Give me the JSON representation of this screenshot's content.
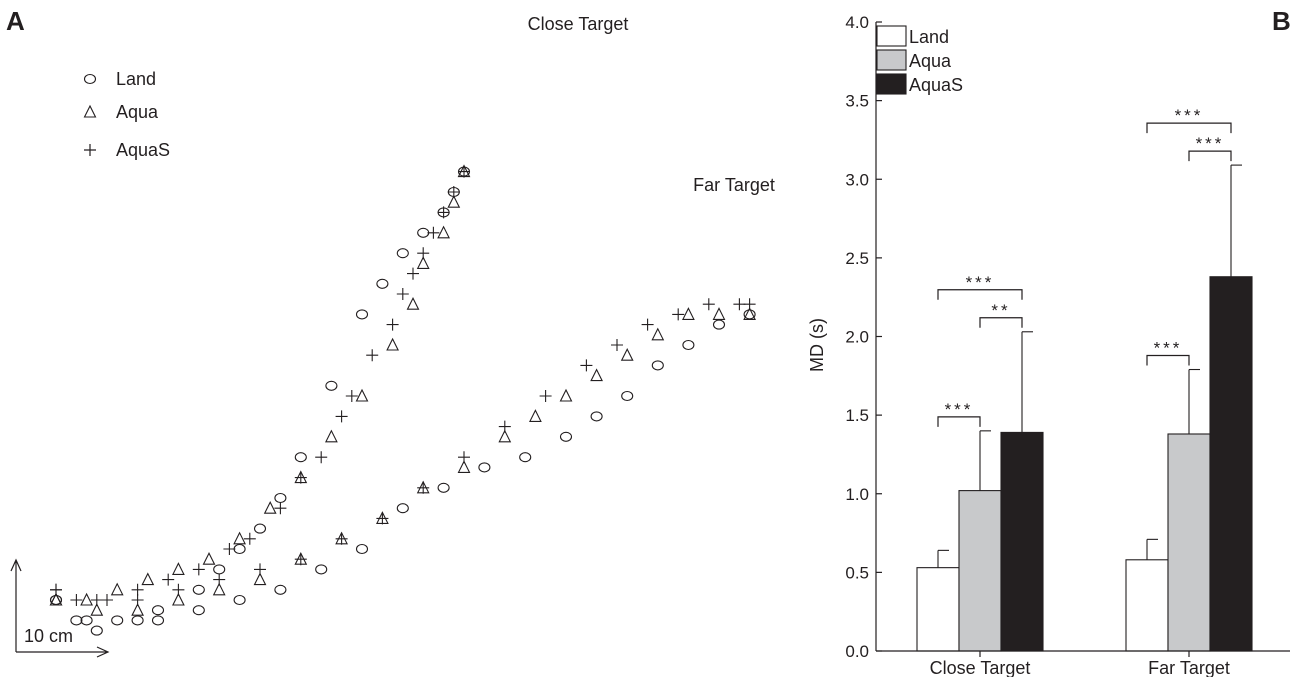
{
  "panels": {
    "a_label": "A",
    "b_label": "B"
  },
  "chart_data": [
    {
      "type": "scatter",
      "panel": "A",
      "target_labels": {
        "close": "Close Target",
        "far": "Far Target"
      },
      "scale_bar": {
        "label": "10 cm",
        "length_cm": 10
      },
      "legend": [
        {
          "name": "Land",
          "marker": "circle"
        },
        {
          "name": "Aqua",
          "marker": "triangle"
        },
        {
          "name": "AquaS",
          "marker": "plus"
        }
      ],
      "series": [
        {
          "name": "Land",
          "target": "Close Target",
          "marker": "circle",
          "points": [
            [
              0,
              0
            ],
            [
              2,
              -2
            ],
            [
              4,
              -3
            ],
            [
              8,
              -2
            ],
            [
              10,
              -1
            ],
            [
              14,
              1
            ],
            [
              16,
              3
            ],
            [
              18,
              5
            ],
            [
              20,
              7
            ],
            [
              22,
              10
            ],
            [
              24,
              14
            ],
            [
              27,
              21
            ],
            [
              30,
              28
            ],
            [
              32,
              31
            ],
            [
              34,
              34
            ],
            [
              36,
              36
            ],
            [
              38,
              38
            ],
            [
              39,
              40
            ],
            [
              40,
              42
            ]
          ]
        },
        {
          "name": "Aqua",
          "target": "Close Target",
          "marker": "triangle",
          "points": [
            [
              0,
              0
            ],
            [
              3,
              0
            ],
            [
              6,
              1
            ],
            [
              9,
              2
            ],
            [
              12,
              3
            ],
            [
              15,
              4
            ],
            [
              18,
              6
            ],
            [
              21,
              9
            ],
            [
              24,
              12
            ],
            [
              27,
              16
            ],
            [
              30,
              20
            ],
            [
              33,
              25
            ],
            [
              35,
              29
            ],
            [
              36,
              33
            ],
            [
              38,
              36
            ],
            [
              39,
              39
            ],
            [
              40,
              42
            ]
          ]
        },
        {
          "name": "AquaS",
          "target": "Close Target",
          "marker": "plus",
          "points": [
            [
              0,
              1
            ],
            [
              2,
              0
            ],
            [
              5,
              0
            ],
            [
              8,
              1
            ],
            [
              11,
              2
            ],
            [
              14,
              3
            ],
            [
              17,
              5
            ],
            [
              19,
              6
            ],
            [
              22,
              9
            ],
            [
              24,
              12
            ],
            [
              26,
              14
            ],
            [
              28,
              18
            ],
            [
              29,
              20
            ],
            [
              31,
              24
            ],
            [
              33,
              27
            ],
            [
              34,
              30
            ],
            [
              35,
              32
            ],
            [
              36,
              34
            ],
            [
              37,
              36
            ],
            [
              38,
              38
            ],
            [
              39,
              40
            ],
            [
              40,
              42
            ]
          ]
        },
        {
          "name": "Land",
          "target": "Far Target",
          "marker": "circle",
          "points": [
            [
              0,
              0
            ],
            [
              3,
              -2
            ],
            [
              6,
              -2
            ],
            [
              10,
              -2
            ],
            [
              14,
              -1
            ],
            [
              18,
              0
            ],
            [
              22,
              1
            ],
            [
              26,
              3
            ],
            [
              30,
              5
            ],
            [
              34,
              9
            ],
            [
              38,
              11
            ],
            [
              42,
              13
            ],
            [
              46,
              14
            ],
            [
              50,
              16
            ],
            [
              53,
              18
            ],
            [
              56,
              20
            ],
            [
              59,
              23
            ],
            [
              62,
              25
            ],
            [
              65,
              27
            ],
            [
              68,
              28
            ]
          ]
        },
        {
          "name": "Aqua",
          "target": "Far Target",
          "marker": "triangle",
          "points": [
            [
              0,
              0
            ],
            [
              4,
              -1
            ],
            [
              8,
              -1
            ],
            [
              12,
              0
            ],
            [
              16,
              1
            ],
            [
              20,
              2
            ],
            [
              24,
              4
            ],
            [
              28,
              6
            ],
            [
              32,
              8
            ],
            [
              36,
              11
            ],
            [
              40,
              13
            ],
            [
              44,
              16
            ],
            [
              47,
              18
            ],
            [
              50,
              20
            ],
            [
              53,
              22
            ],
            [
              56,
              24
            ],
            [
              59,
              26
            ],
            [
              62,
              28
            ],
            [
              65,
              28
            ],
            [
              68,
              28
            ]
          ]
        },
        {
          "name": "AquaS",
          "target": "Far Target",
          "marker": "plus",
          "points": [
            [
              0,
              1
            ],
            [
              4,
              0
            ],
            [
              8,
              0
            ],
            [
              12,
              1
            ],
            [
              16,
              2
            ],
            [
              20,
              3
            ],
            [
              24,
              4
            ],
            [
              28,
              6
            ],
            [
              32,
              8
            ],
            [
              36,
              11
            ],
            [
              40,
              14
            ],
            [
              44,
              17
            ],
            [
              48,
              20
            ],
            [
              52,
              23
            ],
            [
              55,
              25
            ],
            [
              58,
              27
            ],
            [
              61,
              28
            ],
            [
              64,
              29
            ],
            [
              67,
              29
            ],
            [
              68,
              29
            ]
          ]
        }
      ]
    },
    {
      "type": "bar",
      "panel": "B",
      "categories": [
        "Close Target",
        "Far Target"
      ],
      "ylabel": "MD (s)",
      "ylim": [
        0,
        4.0
      ],
      "yticks": [
        "0.0",
        "0.5",
        "1.0",
        "1.5",
        "2.0",
        "2.5",
        "3.0",
        "3.5",
        "4.0"
      ],
      "legend_position": "top-left",
      "series": [
        {
          "name": "Land",
          "color": "#ffffff",
          "values": [
            0.53,
            0.58
          ],
          "errors": [
            0.11,
            0.13
          ]
        },
        {
          "name": "Aqua",
          "color": "#c8c9cb",
          "values": [
            1.02,
            1.38
          ],
          "errors": [
            0.38,
            0.41
          ]
        },
        {
          "name": "AquaS",
          "color": "#231f20",
          "values": [
            1.39,
            2.38
          ],
          "errors": [
            0.64,
            0.71
          ]
        }
      ],
      "significance": [
        {
          "category": "Close Target",
          "from": "Land",
          "to": "Aqua",
          "label": "***"
        },
        {
          "category": "Close Target",
          "from": "Aqua",
          "to": "AquaS",
          "label": "**"
        },
        {
          "category": "Close Target",
          "from": "Land",
          "to": "AquaS",
          "label": "***"
        },
        {
          "category": "Far Target",
          "from": "Land",
          "to": "Aqua",
          "label": "***"
        },
        {
          "category": "Far Target",
          "from": "Aqua",
          "to": "AquaS",
          "label": "***"
        },
        {
          "category": "Far Target",
          "from": "Land",
          "to": "AquaS",
          "label": "***"
        }
      ]
    }
  ]
}
